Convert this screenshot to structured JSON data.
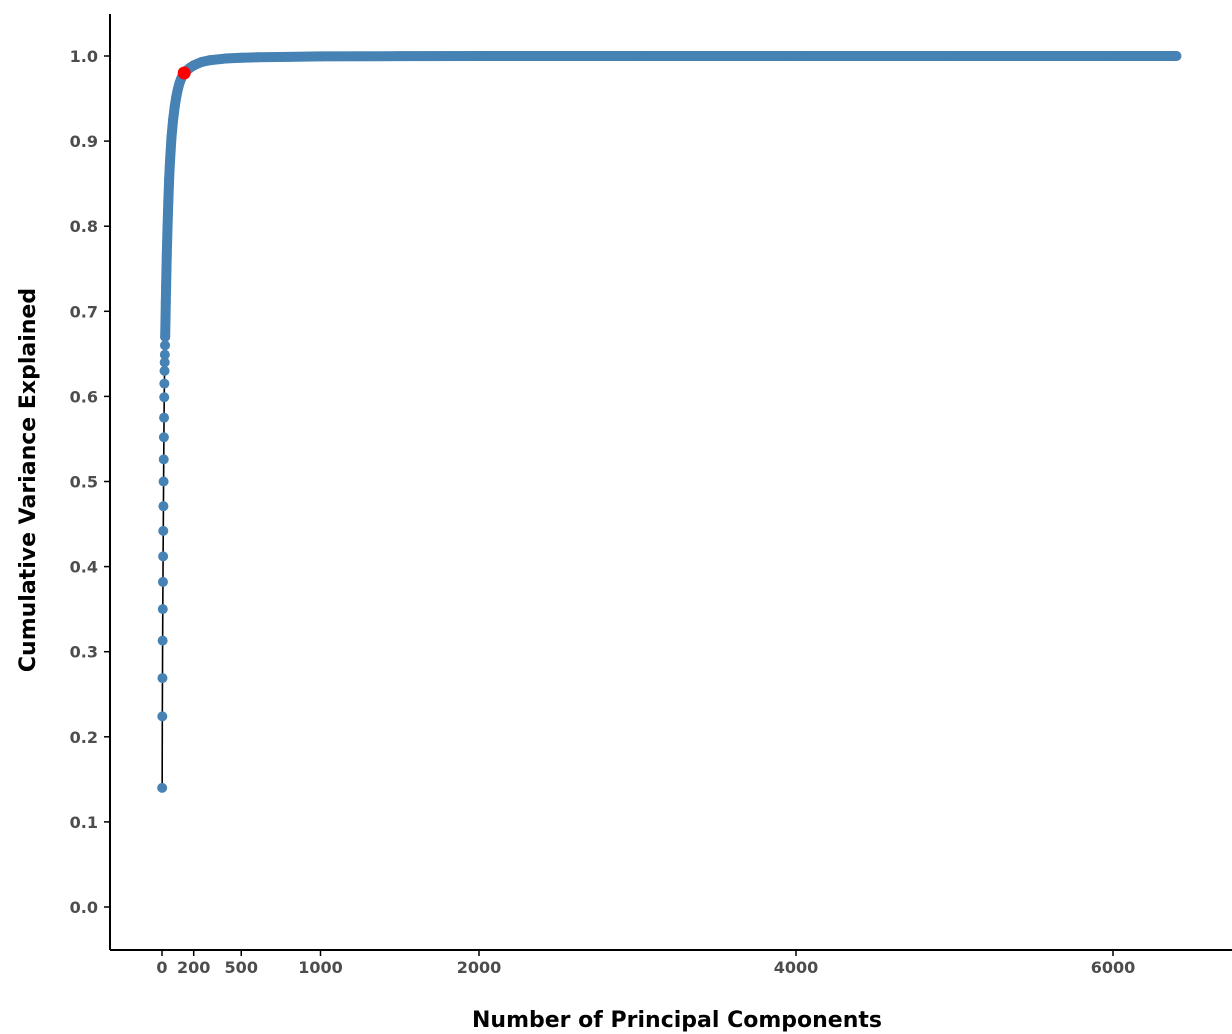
{
  "chart_data": {
    "type": "scatter",
    "title": "",
    "xlabel": "Number of Principal Components",
    "ylabel": "Cumulative Variance Explained",
    "xlim": [
      -300,
      6900
    ],
    "ylim": [
      -0.05,
      1.05
    ],
    "x_ticks": [
      0,
      200,
      500,
      1000,
      2000,
      4000,
      6000
    ],
    "x_tick_labels": [
      "0",
      "200",
      "500",
      "1000",
      "2000",
      "4000",
      "6000"
    ],
    "y_ticks": [
      0.0,
      0.1,
      0.2,
      0.3,
      0.4,
      0.5,
      0.6,
      0.7,
      0.8,
      0.9,
      1.0
    ],
    "y_tick_labels": [
      "0.0",
      "0.1",
      "0.2",
      "0.3",
      "0.4",
      "0.5",
      "0.6",
      "0.7",
      "0.8",
      "0.9",
      "1.0"
    ],
    "grid": false,
    "legend": "none",
    "series": [
      {
        "role": "all-components",
        "color": "#4682b4",
        "line_color": "#000000",
        "x": [
          1,
          2,
          3,
          4,
          5,
          6,
          7,
          8,
          9,
          10,
          11,
          12,
          13,
          14,
          15,
          16,
          17,
          18,
          19,
          20,
          22,
          24,
          26,
          28,
          30,
          35,
          40,
          45,
          50,
          60,
          70,
          80,
          90,
          100,
          110,
          120,
          130,
          140,
          150,
          175,
          200,
          250,
          300,
          400,
          500,
          600,
          800,
          1000,
          1500,
          2000,
          3000,
          4000,
          5000,
          6000,
          6400
        ],
        "y": [
          0.14,
          0.224,
          0.269,
          0.313,
          0.35,
          0.382,
          0.412,
          0.442,
          0.471,
          0.5,
          0.526,
          0.552,
          0.575,
          0.599,
          0.615,
          0.63,
          0.64,
          0.649,
          0.66,
          0.67,
          0.69,
          0.71,
          0.73,
          0.748,
          0.765,
          0.8,
          0.83,
          0.855,
          0.875,
          0.905,
          0.925,
          0.94,
          0.952,
          0.961,
          0.968,
          0.973,
          0.977,
          0.98,
          0.982,
          0.986,
          0.989,
          0.993,
          0.995,
          0.997,
          0.998,
          0.9985,
          0.999,
          0.9995,
          0.9998,
          1.0,
          1.0,
          1.0,
          1.0,
          1.0,
          1.0
        ]
      },
      {
        "role": "selected-point",
        "color": "#ff0000",
        "x": [
          140
        ],
        "y": [
          0.98
        ]
      }
    ]
  }
}
